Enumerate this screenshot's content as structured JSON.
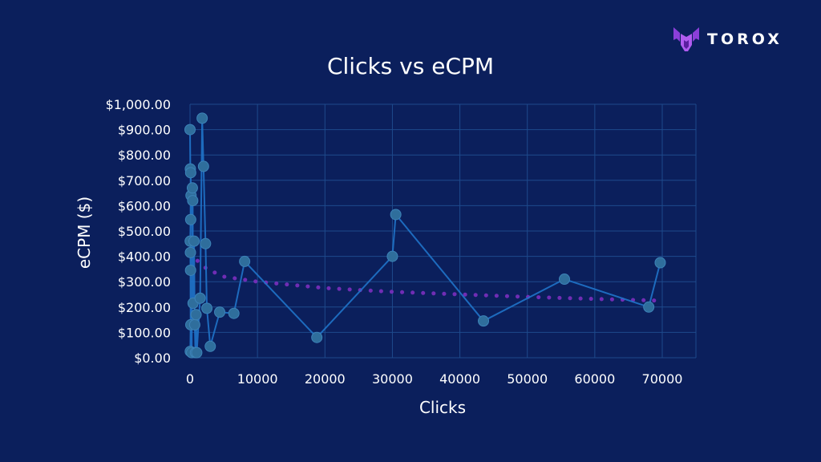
{
  "brand": {
    "name": "TOROX",
    "accent": "#8b3fd9",
    "icon": "torox-logo-icon"
  },
  "chart_data": {
    "type": "scatter",
    "title": "Clicks vs eCPM",
    "xlabel": "Clicks",
    "ylabel": "eCPM ($)",
    "xlim": [
      -500,
      75000
    ],
    "ylim": [
      0,
      1000
    ],
    "x_ticks": [
      0,
      10000,
      20000,
      30000,
      40000,
      50000,
      60000,
      70000
    ],
    "x_tick_labels": [
      "0",
      "10000",
      "20000",
      "30000",
      "40000",
      "50000",
      "60000",
      "70000"
    ],
    "y_ticks": [
      0,
      100,
      200,
      300,
      400,
      500,
      600,
      700,
      800,
      900,
      1000
    ],
    "y_tick_labels": [
      "$0.00",
      "$100.00",
      "$200.00",
      "$300.00",
      "$400.00",
      "$500.00",
      "$600.00",
      "$700.00",
      "$800.00",
      "$900.00",
      "$1,000.00"
    ],
    "grid": true,
    "legend": "none",
    "series": [
      {
        "color": "#1f73c9",
        "marker_color": "#2f6e9c",
        "connected": true,
        "points": [
          {
            "x": 0,
            "y": 900
          },
          {
            "x": 50,
            "y": 745
          },
          {
            "x": 100,
            "y": 730
          },
          {
            "x": 150,
            "y": 640
          },
          {
            "x": 100,
            "y": 545
          },
          {
            "x": 30,
            "y": 460
          },
          {
            "x": 60,
            "y": 415
          },
          {
            "x": 80,
            "y": 345
          },
          {
            "x": 120,
            "y": 130
          },
          {
            "x": 40,
            "y": 25
          },
          {
            "x": 250,
            "y": 20
          },
          {
            "x": 350,
            "y": 670
          },
          {
            "x": 400,
            "y": 620
          },
          {
            "x": 450,
            "y": 215
          },
          {
            "x": 600,
            "y": 460
          },
          {
            "x": 700,
            "y": 130
          },
          {
            "x": 800,
            "y": 20
          },
          {
            "x": 900,
            "y": 170
          },
          {
            "x": 1000,
            "y": 20
          },
          {
            "x": 1500,
            "y": 235
          },
          {
            "x": 1800,
            "y": 945
          },
          {
            "x": 2000,
            "y": 755
          },
          {
            "x": 2300,
            "y": 450
          },
          {
            "x": 2500,
            "y": 195
          },
          {
            "x": 3000,
            "y": 45
          },
          {
            "x": 4400,
            "y": 180
          },
          {
            "x": 6500,
            "y": 175
          },
          {
            "x": 8100,
            "y": 380
          },
          {
            "x": 18800,
            "y": 80
          },
          {
            "x": 30000,
            "y": 400
          },
          {
            "x": 30500,
            "y": 565
          },
          {
            "x": 43500,
            "y": 145
          },
          {
            "x": 55500,
            "y": 310
          },
          {
            "x": 68000,
            "y": 200
          },
          {
            "x": 69700,
            "y": 375
          }
        ]
      }
    ],
    "trendline": {
      "type": "logarithmic",
      "style": "dotted",
      "color": "#7b2fbe",
      "points": [
        {
          "x": 500,
          "y": 420
        },
        {
          "x": 1000,
          "y": 385
        },
        {
          "x": 2500,
          "y": 350
        },
        {
          "x": 5000,
          "y": 320
        },
        {
          "x": 10000,
          "y": 300
        },
        {
          "x": 20000,
          "y": 275
        },
        {
          "x": 30000,
          "y": 260
        },
        {
          "x": 40000,
          "y": 250
        },
        {
          "x": 50000,
          "y": 240
        },
        {
          "x": 60000,
          "y": 232
        },
        {
          "x": 70000,
          "y": 225
        }
      ]
    }
  }
}
